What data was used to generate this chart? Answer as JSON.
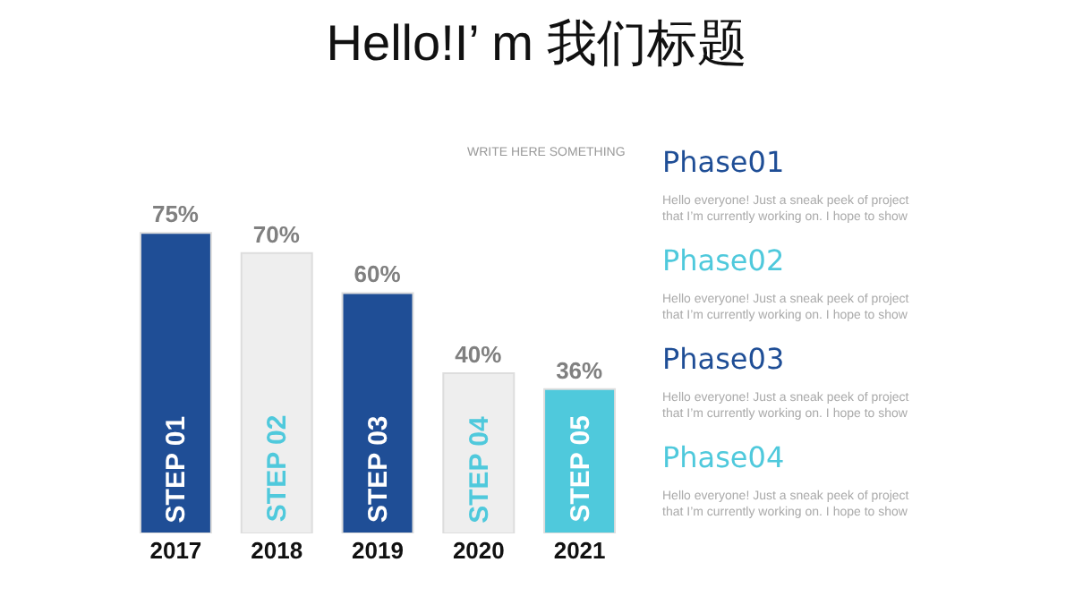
{
  "chart_data": {
    "type": "bar",
    "title": "Hello!I’ m 我们标题",
    "subtitle": "WRITE HERE SOMETHING",
    "categories": [
      "2017",
      "2018",
      "2019",
      "2020",
      "2021"
    ],
    "values": [
      75,
      70,
      60,
      40,
      36
    ],
    "value_labels": [
      "75%",
      "70%",
      "60%",
      "40%",
      "36%"
    ],
    "colors": [
      "#1f4e96",
      "#eeeeee",
      "#1f4e96",
      "#eeeeee",
      "#4fc9dc"
    ],
    "grid": false,
    "legend": false,
    "annotations": [
      "STEP 01",
      "STEP 02",
      "STEP 03",
      "STEP 04",
      "STEP 05",
      "Phase01",
      "Hello everyone! Just a sneak peek of project that I’m currently working on. I hope to show",
      "Phase02",
      "Hello everyone! Just a sneak peek of project that I’m currently working on. I hope to show",
      "Phase03",
      "Hello everyone! Just a sneak peek of project that I’m currently working on. I hope to show",
      "Phase04",
      "Hello everyone! Just a sneak peek of project that I’m currently working on. I hope to show"
    ]
  }
}
